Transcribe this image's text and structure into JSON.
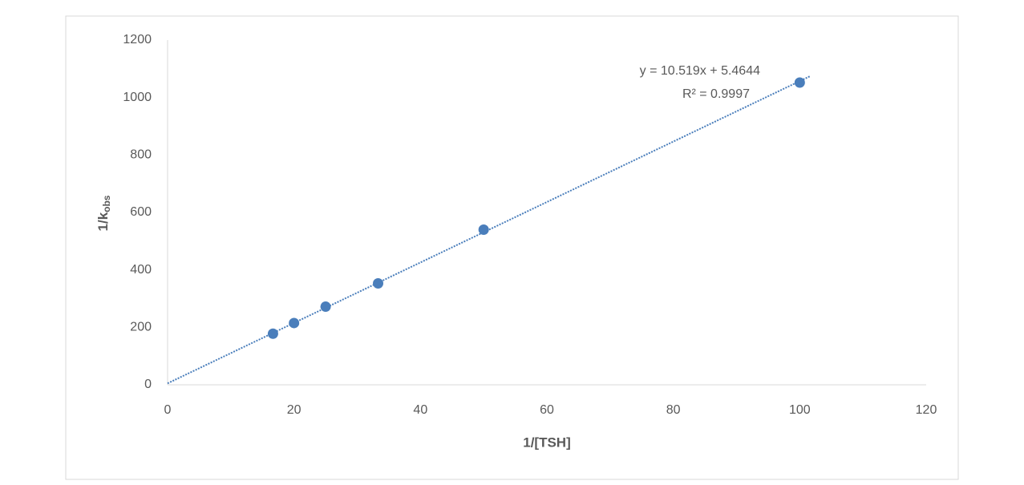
{
  "chart_data": {
    "type": "scatter",
    "x_label": "1/[TSH]",
    "y_label": "1/k",
    "y_label_subscript": "obs",
    "annotations": [
      "y = 10.519x + 5.4644",
      "R² = 0.9997"
    ],
    "series": [
      {
        "color": "#4a7ebb",
        "x": [
          16.67,
          20,
          25,
          33.3,
          50,
          100
        ],
        "values": [
          178,
          215,
          272,
          353,
          540,
          1052
        ]
      }
    ],
    "trendline": {
      "color": "#4a7ebb",
      "x": [
        0,
        101.7
      ],
      "values": [
        5,
        1075
      ]
    },
    "xlim": [
      0,
      120
    ],
    "xticks": [
      0,
      20,
      40,
      60,
      80,
      100,
      120
    ],
    "ylim": [
      0,
      1200
    ],
    "yticks": [
      0,
      200,
      400,
      600,
      800,
      1000,
      1200
    ],
    "grid": false
  }
}
